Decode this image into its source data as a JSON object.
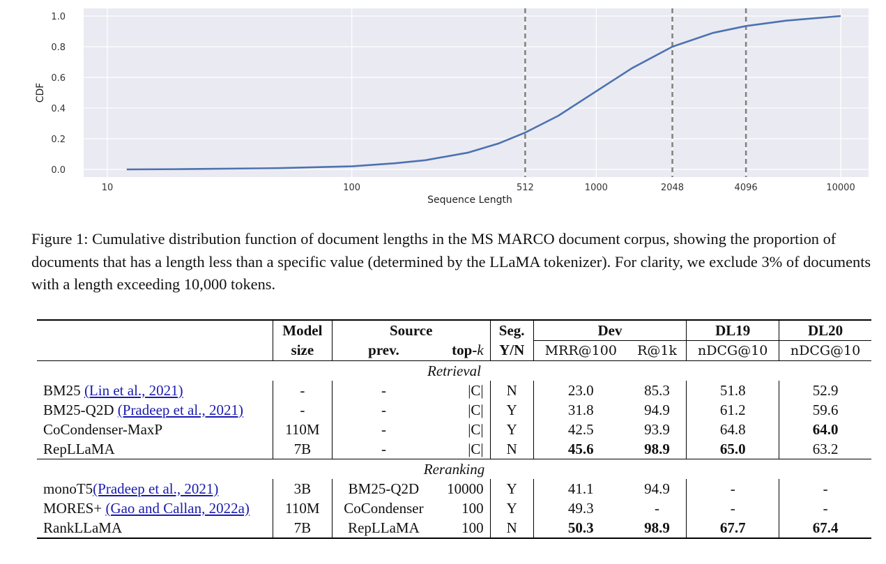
{
  "chart_data": {
    "type": "line",
    "title": "",
    "xlabel": "Sequence Length",
    "ylabel": "CDF",
    "xscale": "log",
    "xlim": [
      8,
      13000
    ],
    "ylim": [
      -0.05,
      1.05
    ],
    "x_ticks": [
      10,
      100,
      512,
      1000,
      2048,
      4096,
      10000
    ],
    "y_ticks": [
      0.0,
      0.2,
      0.4,
      0.6,
      0.8,
      1.0
    ],
    "y_tick_labels": [
      "0.0",
      "0.2",
      "0.4",
      "0.6",
      "0.8",
      "1.0"
    ],
    "grid": true,
    "vlines": [
      512,
      2048,
      4096
    ],
    "series": [
      {
        "color": "#4c72b0",
        "x": [
          12,
          20,
          50,
          100,
          150,
          200,
          300,
          400,
          512,
          700,
          1000,
          1400,
          2048,
          3000,
          4096,
          6000,
          10000
        ],
        "y": [
          0.0,
          0.002,
          0.008,
          0.02,
          0.04,
          0.06,
          0.11,
          0.17,
          0.24,
          0.35,
          0.51,
          0.66,
          0.8,
          0.89,
          0.935,
          0.97,
          1.0
        ]
      }
    ]
  },
  "caption": "Figure 1: Cumulative distribution function of document lengths in the MS MARCO document corpus, showing the proportion of documents that has a length less than a specific value (determined by the LLaMA tokenizer). For clarity, we exclude 3% of documents with a length exceeding 10,000 tokens.",
  "table": {
    "headers": {
      "model": "Model",
      "size": "size",
      "source": "Source",
      "prev": "prev.",
      "topk_prefix": "top-",
      "topk_var": "k",
      "seg": "Seg.",
      "yn": "Y/N",
      "dev": "Dev",
      "mrr": "MRR@100",
      "r1k": "R@1k",
      "dl19": "DL19",
      "dl19_metric": "nDCG@10",
      "dl20": "DL20",
      "dl20_metric": "nDCG@10"
    },
    "section_retrieval": "Retrieval",
    "section_reranking": "Reranking",
    "rows": [
      {
        "name": "BM25",
        "cite": "(Lin et al., 2021)",
        "size": "-",
        "prev": "-",
        "topk": "|C|",
        "seg": "N",
        "mrr": "23.0",
        "r1k": "85.3",
        "dl19": "51.8",
        "dl20": "52.9"
      },
      {
        "name": "BM25-Q2D",
        "cite": "(Pradeep et al., 2021)",
        "size": "-",
        "prev": "-",
        "topk": "|C|",
        "seg": "Y",
        "mrr": "31.8",
        "r1k": "94.9",
        "dl19": "61.2",
        "dl20": "59.6"
      },
      {
        "name": "CoCondenser-MaxP",
        "cite": "",
        "size": "110M",
        "prev": "-",
        "topk": "|C|",
        "seg": "Y",
        "mrr": "42.5",
        "r1k": "93.9",
        "dl19": "64.8",
        "dl20": "64.0"
      },
      {
        "name": "RepLLaMA",
        "cite": "",
        "size": "7B",
        "prev": "-",
        "topk": "|C|",
        "seg": "N",
        "mrr": "45.6",
        "r1k": "98.9",
        "dl19": "65.0",
        "dl20": "63.2"
      },
      {
        "name": "monoT5",
        "cite": "(Pradeep et al., 2021)",
        "size": "3B",
        "prev": "BM25-Q2D",
        "topk": "10000",
        "seg": "Y",
        "mrr": "41.1",
        "r1k": "94.9",
        "dl19": "-",
        "dl20": "-"
      },
      {
        "name": "MORES+",
        "cite": "(Gao and Callan, 2022a)",
        "size": "110M",
        "prev": "CoCondenser",
        "topk": "100",
        "seg": "Y",
        "mrr": "49.3",
        "r1k": "-",
        "dl19": "-",
        "dl20": "-"
      },
      {
        "name": "RankLLaMA",
        "cite": "",
        "size": "7B",
        "prev": "RepLLaMA",
        "topk": "100",
        "seg": "N",
        "mrr": "50.3",
        "r1k": "98.9",
        "dl19": "67.7",
        "dl20": "67.4"
      }
    ]
  }
}
